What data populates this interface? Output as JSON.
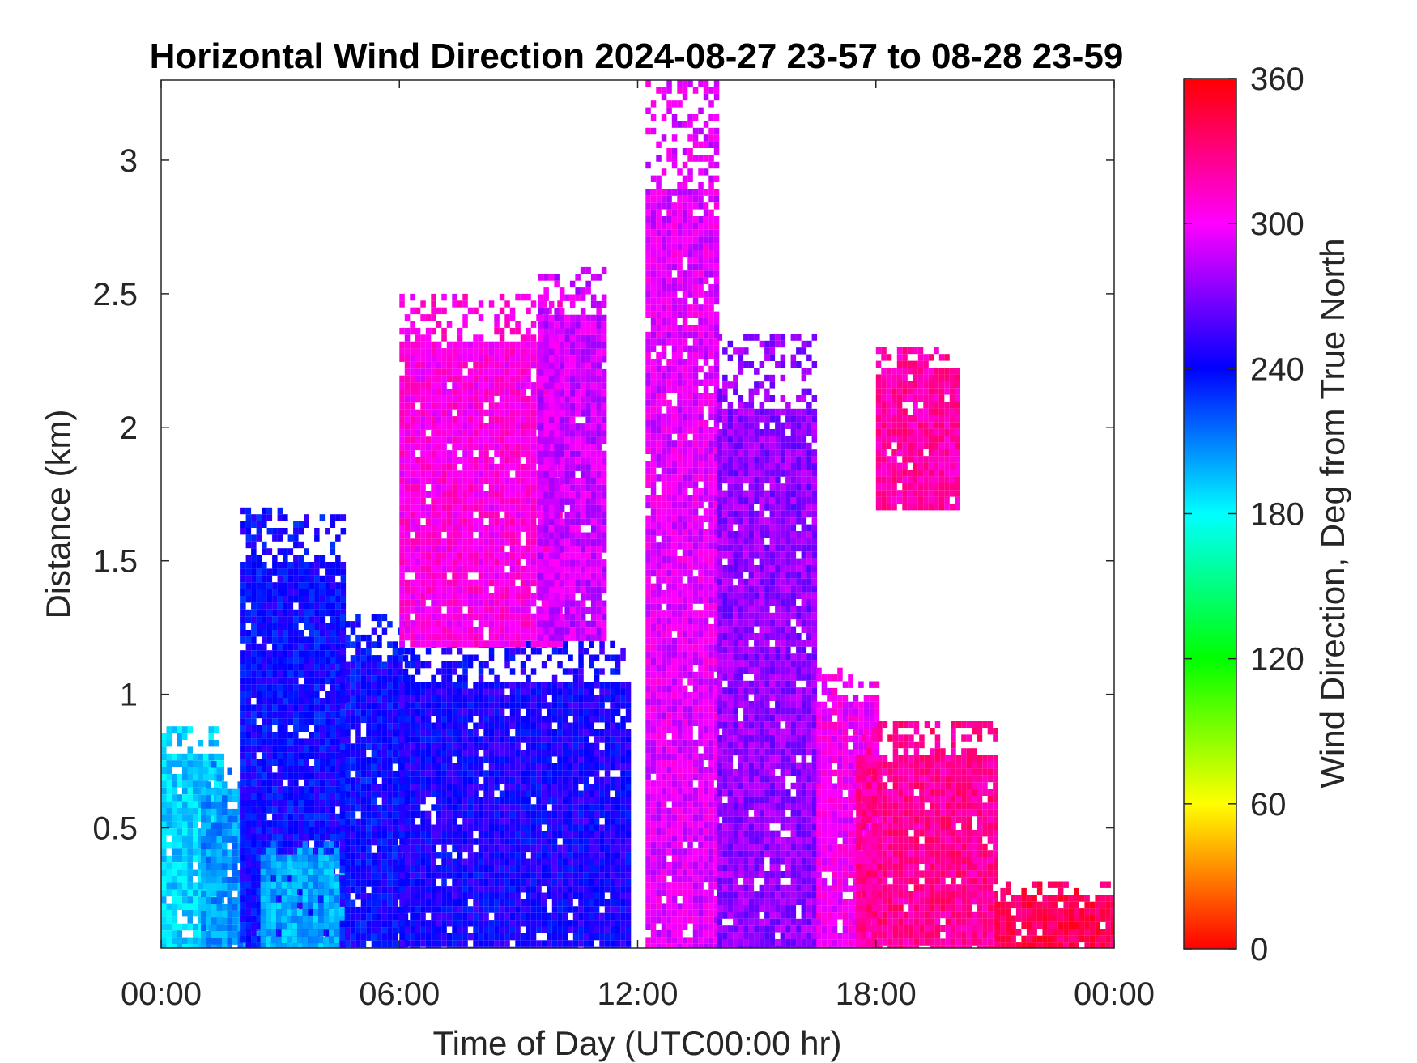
{
  "chart_data": {
    "type": "heatmap",
    "title": "Horizontal Wind Direction 2024-08-27 23-57 to 08-28 23-59",
    "xlabel": "Time of Day (UTC00:00 hr)",
    "ylabel": "Distance (km)",
    "xlim": [
      0,
      24
    ],
    "ylim": [
      0.05,
      3.3
    ],
    "xticks": [
      0,
      6,
      12,
      18,
      24
    ],
    "xtick_labels": [
      "00:00",
      "06:00",
      "12:00",
      "18:00",
      "00:00"
    ],
    "yticks": [
      0.5,
      1,
      1.5,
      2,
      2.5,
      3
    ],
    "ytick_labels": [
      "0.5",
      "1",
      "1.5",
      "2",
      "2.5",
      "3"
    ],
    "colorbar": {
      "label": "Wind Direction, Deg from True North",
      "range": [
        0,
        360
      ],
      "ticks": [
        0,
        60,
        120,
        180,
        240,
        300,
        360
      ],
      "tick_labels": [
        "0",
        "60",
        "120",
        "180",
        "240",
        "300",
        "360"
      ],
      "colormap": [
        "#ff0000",
        "#ffff00",
        "#00ff00",
        "#00ffff",
        "#0000ff",
        "#ff00ff",
        "#ff0000"
      ]
    },
    "grid": false,
    "regions": [
      {
        "time": [
          0.0,
          1.5
        ],
        "distance": [
          0.05,
          0.88
        ],
        "direction_deg": 190
      },
      {
        "time": [
          1.0,
          2.5
        ],
        "distance": [
          0.05,
          0.75
        ],
        "direction_deg": 205
      },
      {
        "time": [
          2.0,
          4.6
        ],
        "distance": [
          0.05,
          1.7
        ],
        "direction_deg": 240
      },
      {
        "time": [
          2.5,
          4.5
        ],
        "distance": [
          0.05,
          0.45
        ],
        "direction_deg": 200
      },
      {
        "time": [
          4.5,
          6.2
        ],
        "distance": [
          0.05,
          1.3
        ],
        "direction_deg": 240
      },
      {
        "time": [
          6.0,
          11.8
        ],
        "distance": [
          0.05,
          1.2
        ],
        "direction_deg": 245
      },
      {
        "time": [
          6.0,
          10.0
        ],
        "distance": [
          1.2,
          2.5
        ],
        "direction_deg": 305
      },
      {
        "time": [
          9.5,
          11.2
        ],
        "distance": [
          1.2,
          2.6
        ],
        "direction_deg": 290
      },
      {
        "time": [
          12.2,
          14.0
        ],
        "distance": [
          0.05,
          3.3
        ],
        "direction_deg": 295
      },
      {
        "time": [
          14.0,
          16.5
        ],
        "distance": [
          0.05,
          2.35
        ],
        "direction_deg": 275
      },
      {
        "time": [
          16.5,
          18.0
        ],
        "distance": [
          0.05,
          1.1
        ],
        "direction_deg": 300
      },
      {
        "time": [
          17.5,
          21.0
        ],
        "distance": [
          0.05,
          0.9
        ],
        "direction_deg": 325
      },
      {
        "time": [
          21.0,
          24.0
        ],
        "distance": [
          0.05,
          0.3
        ],
        "direction_deg": 340
      },
      {
        "time": [
          18.0,
          20.0
        ],
        "distance": [
          1.7,
          2.3
        ],
        "direction_deg": 320
      }
    ]
  }
}
